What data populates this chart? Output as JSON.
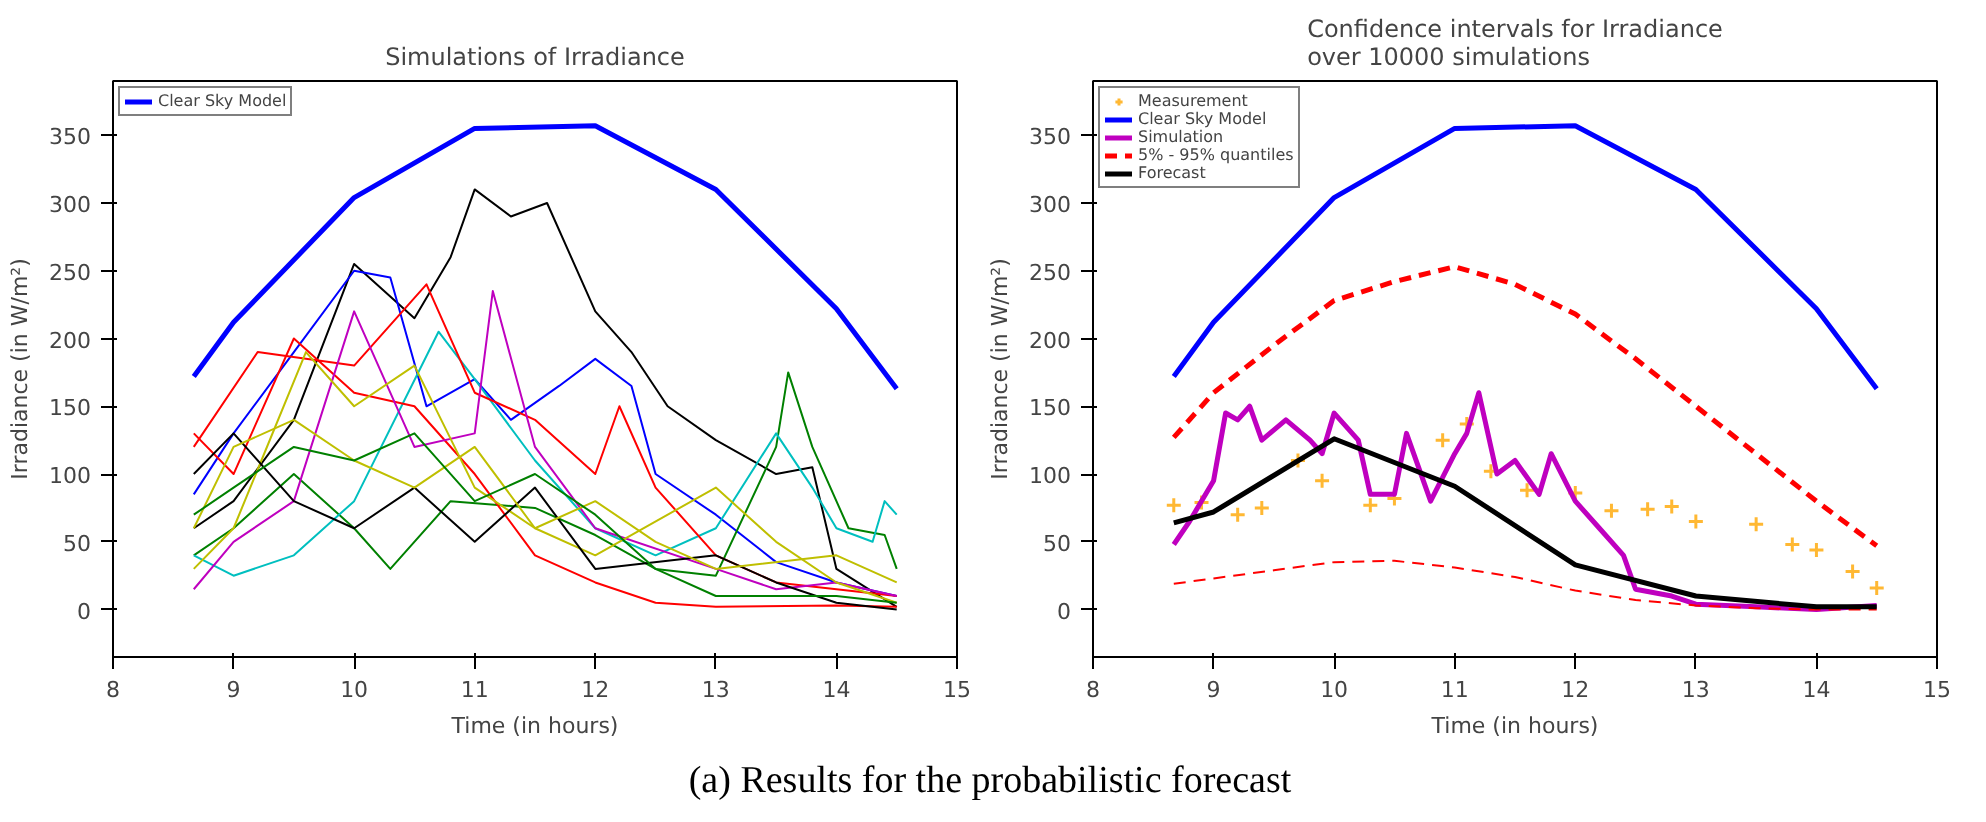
{
  "chart_data": [
    {
      "type": "line",
      "title": "Simulations of Irradiance",
      "xlabel": "Time (in hours)",
      "ylabel": "Irradiance (in W/m²)",
      "xlim": [
        8,
        15
      ],
      "ylim": [
        -35,
        390
      ],
      "xticks": [
        8,
        9,
        10,
        11,
        12,
        13,
        14,
        15
      ],
      "yticks": [
        0,
        50,
        100,
        150,
        200,
        250,
        300,
        350
      ],
      "grid": false,
      "legend": "top left",
      "annotations": [
        "(a) Results for the probabilistic forecast"
      ],
      "series": [
        {
          "name": "Clear Sky Model",
          "color": "#0000ff",
          "x": [
            8.67,
            9,
            10,
            11,
            12,
            13,
            14,
            14.5
          ],
          "values": [
            172,
            212,
            304,
            355,
            357,
            310,
            222,
            163
          ]
        },
        {
          "color": "#000000",
          "x": [
            8.67,
            9,
            9.5,
            10,
            10.5,
            10.8,
            11,
            11.3,
            11.6,
            12,
            12.3,
            12.6,
            13,
            13.5,
            13.8,
            14,
            14.5
          ],
          "values": [
            60,
            80,
            140,
            255,
            215,
            260,
            310,
            290,
            300,
            220,
            190,
            150,
            125,
            100,
            105,
            30,
            2
          ]
        },
        {
          "color": "#0000ff",
          "x": [
            8.67,
            9,
            9.5,
            10,
            10.3,
            10.6,
            11,
            11.3,
            11.7,
            12,
            12.3,
            12.5,
            13,
            13.5,
            14,
            14.5
          ],
          "values": [
            85,
            130,
            190,
            250,
            245,
            150,
            170,
            140,
            165,
            185,
            165,
            100,
            70,
            35,
            20,
            10
          ]
        },
        {
          "color": "#008000",
          "x": [
            8.67,
            9,
            9.5,
            10,
            10.3,
            10.8,
            11.5,
            12,
            12.5,
            13,
            13.5,
            13.6,
            13.8,
            14.1,
            14.4,
            14.5
          ],
          "values": [
            40,
            60,
            100,
            60,
            30,
            80,
            75,
            55,
            30,
            25,
            120,
            175,
            120,
            60,
            55,
            30
          ]
        },
        {
          "color": "#00bfbf",
          "x": [
            8.67,
            9,
            9.5,
            10,
            10.7,
            11,
            11.5,
            12,
            12.5,
            13,
            13.5,
            13.8,
            14,
            14.3,
            14.4,
            14.5
          ],
          "values": [
            40,
            25,
            40,
            80,
            205,
            170,
            110,
            60,
            40,
            60,
            130,
            90,
            60,
            50,
            80,
            70
          ]
        },
        {
          "color": "#ff0000",
          "x": [
            8.67,
            9,
            9.5,
            10,
            10.5,
            11,
            11.5,
            12,
            12.5,
            13,
            14,
            14.5
          ],
          "values": [
            130,
            100,
            200,
            160,
            150,
            100,
            40,
            20,
            5,
            2,
            3,
            2
          ]
        },
        {
          "color": "#ff0000",
          "x": [
            8.67,
            9.2,
            10,
            10.6,
            11,
            11.5,
            12,
            12.2,
            12.5,
            13,
            13.5,
            14.5
          ],
          "values": [
            120,
            190,
            180,
            240,
            160,
            140,
            100,
            150,
            90,
            40,
            20,
            10
          ]
        },
        {
          "color": "#bf00bf",
          "x": [
            8.67,
            9,
            9.5,
            10,
            10.5,
            11,
            11.15,
            11.5,
            12,
            13,
            13.5,
            14,
            14.5
          ],
          "values": [
            15,
            50,
            80,
            220,
            120,
            130,
            235,
            120,
            60,
            30,
            15,
            20,
            10
          ]
        },
        {
          "color": "#bfbf00",
          "x": [
            8.67,
            9,
            9.6,
            10,
            10.5,
            11,
            11.5,
            12,
            13,
            13.5,
            14,
            14.5
          ],
          "values": [
            30,
            60,
            190,
            150,
            180,
            90,
            60,
            40,
            90,
            50,
            20,
            5
          ]
        },
        {
          "color": "#000000",
          "x": [
            8.67,
            9,
            9.5,
            10,
            10.5,
            11,
            11.5,
            12,
            13,
            13.5,
            14,
            14.5
          ],
          "values": [
            100,
            130,
            80,
            60,
            90,
            50,
            90,
            30,
            40,
            20,
            5,
            0
          ]
        },
        {
          "color": "#bfbf00",
          "x": [
            8.67,
            9,
            9.5,
            10,
            10.5,
            11,
            11.5,
            12,
            12.5,
            13,
            14,
            14.5
          ],
          "values": [
            60,
            120,
            140,
            110,
            90,
            120,
            60,
            80,
            50,
            30,
            40,
            20
          ]
        },
        {
          "color": "#008000",
          "x": [
            8.67,
            9,
            9.5,
            10,
            10.5,
            11,
            11.5,
            12,
            12.5,
            13,
            14,
            14.5
          ],
          "values": [
            70,
            90,
            120,
            110,
            130,
            80,
            100,
            70,
            30,
            10,
            10,
            5
          ]
        }
      ]
    },
    {
      "type": "line",
      "title": "Confidence intervals for Irradiance\nover 10000 simulations",
      "xlabel": "Time (in hours)",
      "ylabel": "Irradiance (in W/m²)",
      "xlim": [
        8,
        15
      ],
      "ylim": [
        -35,
        390
      ],
      "xticks": [
        8,
        9,
        10,
        11,
        12,
        13,
        14,
        15
      ],
      "yticks": [
        0,
        50,
        100,
        150,
        200,
        250,
        300,
        350
      ],
      "grid": false,
      "legend": "top left",
      "series": [
        {
          "name": "Measurement",
          "type": "scatter",
          "marker": "cross",
          "color": "#ffb833",
          "x": [
            8.67,
            8.9,
            9.2,
            9.4,
            9.7,
            9.9,
            10.3,
            10.5,
            10.9,
            11.1,
            11.3,
            11.6,
            12,
            12.3,
            12.6,
            12.8,
            13,
            13.5,
            13.8,
            14,
            14.3,
            14.5
          ],
          "values": [
            77,
            79,
            70,
            75,
            110,
            95,
            77,
            82,
            125,
            137,
            102,
            88,
            86,
            73,
            74,
            76,
            65,
            63,
            48,
            44,
            28,
            16
          ]
        },
        {
          "name": "Clear Sky Model",
          "color": "#0000ff",
          "x": [
            8.67,
            9,
            10,
            11,
            12,
            13,
            14,
            14.5
          ],
          "values": [
            172,
            212,
            304,
            355,
            357,
            310,
            222,
            163
          ]
        },
        {
          "name": "Simulation",
          "color": "#bf00bf",
          "x": [
            8.67,
            8.8,
            9.0,
            9.1,
            9.2,
            9.3,
            9.4,
            9.6,
            9.8,
            9.9,
            10.0,
            10.2,
            10.3,
            10.5,
            10.6,
            10.8,
            11,
            11.1,
            11.2,
            11.35,
            11.5,
            11.7,
            11.8,
            12,
            12.2,
            12.4,
            12.5,
            12.8,
            13.0,
            13.5,
            14,
            14.5
          ],
          "values": [
            48,
            65,
            95,
            145,
            140,
            150,
            125,
            140,
            125,
            115,
            145,
            125,
            85,
            85,
            130,
            80,
            115,
            130,
            160,
            100,
            110,
            85,
            115,
            80,
            60,
            40,
            15,
            10,
            4,
            2,
            0,
            3
          ]
        },
        {
          "name": "5% - 95% quantiles",
          "color": "#ff0000",
          "line_style": "dashed",
          "x": [
            8.67,
            9,
            9.5,
            10,
            10.5,
            11,
            11.5,
            12,
            12.5,
            13,
            13.5,
            14,
            14.5
          ],
          "values": [
            127,
            160,
            195,
            228,
            242,
            253,
            240,
            218,
            185,
            150,
            115,
            80,
            47
          ]
        },
        {
          "color": "#ff0000",
          "line_style": "dashed",
          "x": [
            8.67,
            9,
            9.5,
            10,
            10.5,
            11,
            11.5,
            12,
            12.5,
            13,
            13.5,
            14,
            14.5
          ],
          "values": [
            19,
            23,
            29,
            35,
            36,
            31,
            24,
            14,
            7,
            3,
            1,
            0,
            0
          ]
        },
        {
          "name": "Forecast",
          "color": "#000000",
          "x": [
            8.67,
            9,
            10,
            11,
            12,
            13,
            14,
            14.5
          ],
          "values": [
            64,
            72,
            126,
            91,
            33,
            10,
            2,
            2
          ]
        }
      ]
    }
  ]
}
